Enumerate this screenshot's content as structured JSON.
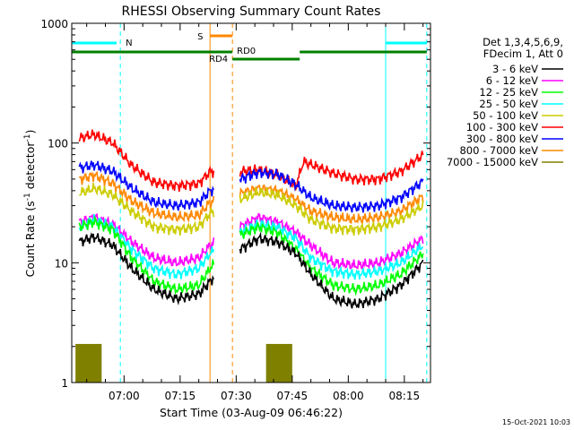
{
  "chart_data": {
    "type": "line",
    "title": "RHESSI Observing Summary Count Rates",
    "xlabel": "Start Time (03-Aug-09 06:46:22)",
    "ylabel": "Count Rate (s",
    "ylabel_sup": "-1",
    "ylabel_tail": " detector",
    "ylabel_sup2": "-1",
    "ylabel_end": ")",
    "yscale": "log",
    "ylim": [
      1,
      1000
    ],
    "xlim": [
      "06:46",
      "08:22"
    ],
    "x_ticks": [
      "07:00",
      "07:15",
      "07:30",
      "07:45",
      "08:00",
      "08:15"
    ],
    "y_ticks": [
      "1",
      "10",
      "100",
      "1000"
    ],
    "legend_title": [
      "Det 1,3,4,5,6,9,",
      "FDecim 1, Att 0"
    ],
    "legend_position": "right",
    "series": [
      {
        "name": "3 - 6 keV",
        "color": "#000000",
        "x": [
          "06:48",
          "06:52",
          "06:57",
          "07:02",
          "07:08",
          "07:14",
          "07:20",
          "07:23",
          "07:31",
          "07:36",
          "07:41",
          "07:46",
          "07:50",
          "07:56",
          "08:02",
          "08:08",
          "08:14",
          "08:20"
        ],
        "y": [
          15,
          16.5,
          14,
          9,
          6,
          5,
          5.5,
          7,
          13,
          16,
          15,
          12,
          8,
          5,
          4.5,
          5,
          6.5,
          10
        ]
      },
      {
        "name": "6 - 12 keV",
        "color": "#ff00ff",
        "x": [
          "06:48",
          "06:52",
          "06:57",
          "07:02",
          "07:08",
          "07:14",
          "07:20",
          "07:23",
          "07:31",
          "07:36",
          "07:41",
          "07:46",
          "07:50",
          "07:56",
          "08:02",
          "08:08",
          "08:14",
          "08:20"
        ],
        "y": [
          22,
          24,
          21,
          15,
          11,
          10,
          11,
          14,
          20,
          24,
          22,
          18,
          14,
          10,
          9.5,
          10,
          12,
          16
        ]
      },
      {
        "name": "12 - 25 keV",
        "color": "#00ff00",
        "x": [
          "06:48",
          "06:52",
          "06:57",
          "07:02",
          "07:08",
          "07:14",
          "07:20",
          "07:23",
          "07:31",
          "07:36",
          "07:41",
          "07:46",
          "07:50",
          "07:56",
          "08:02",
          "08:08",
          "08:14",
          "08:20"
        ],
        "y": [
          20,
          22,
          19,
          11,
          7,
          6,
          6.5,
          9,
          17,
          20,
          18,
          13,
          9,
          6.5,
          6,
          6.5,
          8,
          12
        ]
      },
      {
        "name": "25 - 50 keV",
        "color": "#00ffff",
        "x": [
          "06:48",
          "06:52",
          "06:57",
          "07:02",
          "07:08",
          "07:14",
          "07:20",
          "07:23",
          "07:31",
          "07:36",
          "07:41",
          "07:46",
          "07:50",
          "07:56",
          "08:02",
          "08:08",
          "08:14",
          "08:20"
        ],
        "y": [
          20,
          23,
          20,
          13,
          9,
          8,
          9,
          12,
          18,
          21,
          20,
          16,
          11,
          8.5,
          8,
          8.5,
          10,
          14
        ]
      },
      {
        "name": "50 - 100 keV",
        "color": "#cccc00",
        "x": [
          "06:48",
          "06:52",
          "06:57",
          "07:02",
          "07:08",
          "07:14",
          "07:20",
          "07:23",
          "07:31",
          "07:36",
          "07:41",
          "07:46",
          "07:50",
          "07:56",
          "08:02",
          "08:08",
          "08:14",
          "08:20"
        ],
        "y": [
          38,
          42,
          37,
          27,
          20,
          19,
          20,
          26,
          34,
          39,
          37,
          30,
          23,
          19.5,
          19,
          20,
          23,
          30
        ]
      },
      {
        "name": "100 - 300 keV",
        "color": "#ff0000",
        "x": [
          "06:48",
          "06:52",
          "06:57",
          "07:02",
          "07:08",
          "07:14",
          "07:20",
          "07:23",
          "07:31",
          "07:36",
          "07:41",
          "07:46",
          "07:48",
          "07:56",
          "08:02",
          "08:08",
          "08:14",
          "08:20"
        ],
        "y": [
          110,
          118,
          100,
          65,
          47,
          44,
          46,
          58,
          58,
          60,
          54,
          44,
          70,
          56,
          50,
          50,
          58,
          80
        ]
      },
      {
        "name": "300 - 800 keV",
        "color": "#0000ff",
        "x": [
          "06:48",
          "06:52",
          "06:57",
          "07:02",
          "07:08",
          "07:14",
          "07:20",
          "07:23",
          "07:31",
          "07:36",
          "07:41",
          "07:46",
          "07:50",
          "07:56",
          "08:02",
          "08:08",
          "08:14",
          "08:20"
        ],
        "y": [
          62,
          66,
          58,
          42,
          32,
          30,
          32,
          40,
          50,
          57,
          55,
          45,
          35,
          30,
          29,
          30,
          35,
          48
        ]
      },
      {
        "name": "800 - 7000 keV",
        "color": "#ff8800",
        "x": [
          "06:48",
          "06:52",
          "06:57",
          "07:02",
          "07:08",
          "07:14",
          "07:20",
          "07:23",
          "07:31",
          "07:36",
          "07:41",
          "07:46",
          "07:50",
          "07:56",
          "08:02",
          "08:08",
          "08:14",
          "08:20"
        ],
        "y": [
          50,
          54,
          46,
          33,
          26,
          24,
          25,
          32,
          38,
          42,
          40,
          34,
          27,
          24,
          23,
          24,
          27,
          36
        ]
      },
      {
        "name": "7000 - 15000 keV",
        "color": "#808000",
        "x": [
          "06:47",
          "06:49",
          "06:52",
          "06:54"
        ],
        "y": [
          2.1,
          2.1,
          2.1,
          2.1
        ]
      }
    ],
    "flag_labels": {
      "n": "N",
      "s": "S",
      "rd0": "RD0",
      "rd4": "RD4"
    }
  },
  "footer": {
    "date_stamp": "15-Oct-2021 10:03"
  }
}
